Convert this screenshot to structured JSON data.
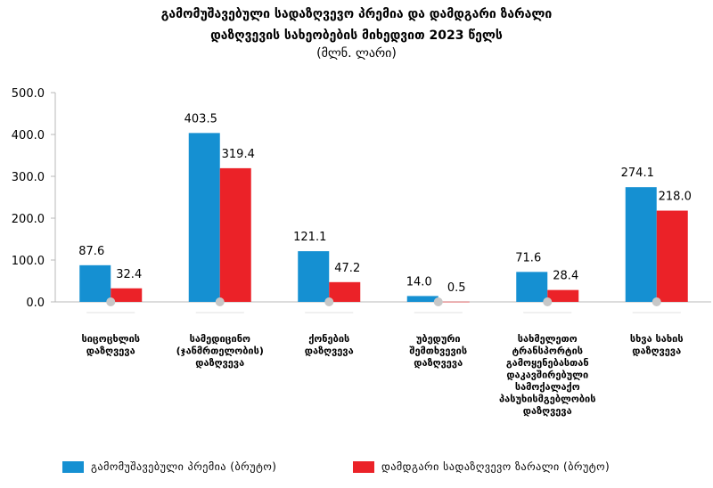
{
  "chart_data": {
    "type": "bar",
    "title_line1": "გამომუშავებული სადაზღვევო პრემია და დამდგარი ზარალი",
    "title_line2": "დაზღვევის სახეობების მიხედვით 2023 წელს",
    "subtitle": "(მლნ. ლარი)",
    "ylim": [
      0,
      500
    ],
    "yticks": [
      "0.0",
      "100.0",
      "200.0",
      "300.0",
      "400.0",
      "500.0"
    ],
    "grid": false,
    "legend_position": "bottom",
    "categories": [
      [
        "სიცოცხლის",
        "დაზღვევა"
      ],
      [
        "სამედიცინო",
        "(ჯანმრთელობის)",
        "დაზღვევა"
      ],
      [
        "ქონების",
        "დაზღვევა"
      ],
      [
        "უბედური",
        "შემთხვევის",
        "დაზღვევა"
      ],
      [
        "სახმელეთო",
        "ტრანსპორტის",
        "გამოყენებასთან",
        "დაკავშირებული",
        "სამოქალაქო",
        "პასუხისმგებლობის",
        "დაზღვევა"
      ],
      [
        "სხვა სახის",
        "დაზღვევა"
      ]
    ],
    "series": [
      {
        "name": "გამომუშავებული პრემია (ბრუტო)",
        "color": "#1590d2",
        "values": [
          87.6,
          403.5,
          121.1,
          14.0,
          71.6,
          274.1
        ],
        "labels": [
          "87.6",
          "403.5",
          "121.1",
          "14.0",
          "71.6",
          "274.1"
        ]
      },
      {
        "name": "დამდგარი სადაზღვევო ზარალი (ბრუტო)",
        "color": "#eb2228",
        "values": [
          32.4,
          319.4,
          47.2,
          0.5,
          28.4,
          218.0
        ],
        "labels": [
          "32.4",
          "319.4",
          "47.2",
          "0.5",
          "28.4",
          "218.0"
        ]
      }
    ],
    "colors": {
      "axis": "#b8b8b8",
      "marker": "#c7c7c7"
    }
  }
}
